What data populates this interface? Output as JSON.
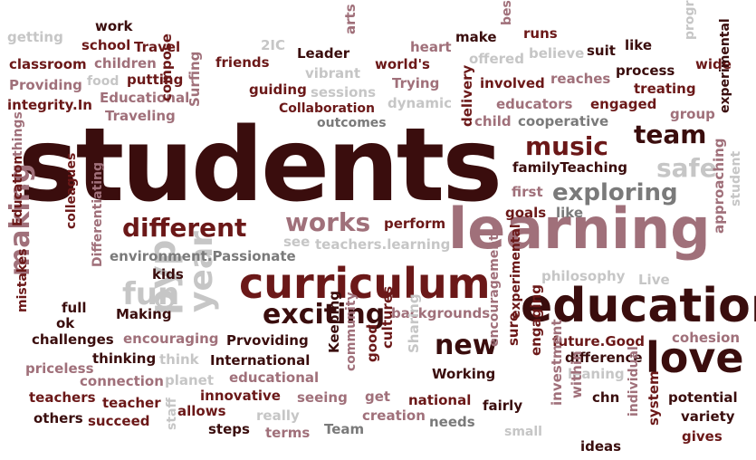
{
  "palette": {
    "dark": "#3a0d0d",
    "maroon": "#6b1818",
    "red": "#8e1f26",
    "rose": "#a0707a",
    "gray": "#7a7a7a",
    "lightgray": "#c6c6c6"
  },
  "words": [
    {
      "text": "students",
      "color": "dark"
    },
    {
      "text": "learning",
      "color": "rose"
    },
    {
      "text": "curriculum",
      "color": "maroon"
    },
    {
      "text": "education",
      "color": "dark"
    },
    {
      "text": "love",
      "color": "dark"
    },
    {
      "text": "exploring",
      "color": "gray"
    },
    {
      "text": "music",
      "color": "maroon"
    },
    {
      "text": "team",
      "color": "dark"
    },
    {
      "text": "safe",
      "color": "lightgray"
    },
    {
      "text": "different",
      "color": "maroon"
    },
    {
      "text": "works",
      "color": "rose"
    },
    {
      "text": "exciting",
      "color": "dark"
    },
    {
      "text": "new",
      "color": "dark"
    },
    {
      "text": "making",
      "color": "rose"
    },
    {
      "text": "fun",
      "color": "lightgray"
    },
    {
      "text": "pyp",
      "color": "lightgray"
    },
    {
      "text": "year",
      "color": "lightgray"
    },
    {
      "text": "work",
      "color": "dark"
    },
    {
      "text": "school",
      "color": "maroon"
    },
    {
      "text": "Travel",
      "color": "maroon"
    },
    {
      "text": "getting",
      "color": "lightgray"
    },
    {
      "text": "children",
      "color": "rose"
    },
    {
      "text": "classroom",
      "color": "maroon"
    },
    {
      "text": "food",
      "color": "lightgray"
    },
    {
      "text": "putting",
      "color": "maroon"
    },
    {
      "text": "Providing",
      "color": "rose"
    },
    {
      "text": "Educational",
      "color": "rose"
    },
    {
      "text": "integrity.In",
      "color": "maroon"
    },
    {
      "text": "Traveling",
      "color": "rose"
    },
    {
      "text": "compose",
      "color": "maroon"
    },
    {
      "text": "Surfing",
      "color": "rose"
    },
    {
      "text": "friends",
      "color": "maroon"
    },
    {
      "text": "guiding",
      "color": "maroon"
    },
    {
      "text": "2IC",
      "color": "lightgray"
    },
    {
      "text": "Leader",
      "color": "dark"
    },
    {
      "text": "arts",
      "color": "rose"
    },
    {
      "text": "vibrant",
      "color": "lightgray"
    },
    {
      "text": "sessions",
      "color": "lightgray"
    },
    {
      "text": "Collaboration",
      "color": "maroon"
    },
    {
      "text": "outcomes",
      "color": "gray"
    },
    {
      "text": "heart",
      "color": "rose"
    },
    {
      "text": "world's",
      "color": "maroon"
    },
    {
      "text": "Trying",
      "color": "rose"
    },
    {
      "text": "dynamic",
      "color": "lightgray"
    },
    {
      "text": "make",
      "color": "dark"
    },
    {
      "text": "best",
      "color": "rose"
    },
    {
      "text": "runs",
      "color": "maroon"
    },
    {
      "text": "offered",
      "color": "lightgray"
    },
    {
      "text": "believe",
      "color": "lightgray"
    },
    {
      "text": "suit",
      "color": "dark"
    },
    {
      "text": "like",
      "color": "dark"
    },
    {
      "text": "program",
      "color": "lightgray"
    },
    {
      "text": "wide",
      "color": "maroon"
    },
    {
      "text": "process",
      "color": "dark"
    },
    {
      "text": "reaches",
      "color": "rose"
    },
    {
      "text": "involved",
      "color": "maroon"
    },
    {
      "text": "treating",
      "color": "maroon"
    },
    {
      "text": "delivery",
      "color": "maroon"
    },
    {
      "text": "educators",
      "color": "rose"
    },
    {
      "text": "engaged",
      "color": "maroon"
    },
    {
      "text": "child",
      "color": "rose"
    },
    {
      "text": "cooperative",
      "color": "gray"
    },
    {
      "text": "group",
      "color": "rose"
    },
    {
      "text": "experimental",
      "color": "dark"
    },
    {
      "text": "familyTeaching",
      "color": "dark"
    },
    {
      "text": "first",
      "color": "rose"
    },
    {
      "text": "goals",
      "color": "maroon"
    },
    {
      "text": "like",
      "color": "gray"
    },
    {
      "text": "approaching",
      "color": "rose"
    },
    {
      "text": "student",
      "color": "lightgray"
    },
    {
      "text": "things",
      "color": "rose"
    },
    {
      "text": "Education",
      "color": "maroon"
    },
    {
      "text": "colleagues",
      "color": "maroon"
    },
    {
      "text": "Differentiating",
      "color": "rose"
    },
    {
      "text": "mistakes",
      "color": "maroon"
    },
    {
      "text": "full",
      "color": "dark"
    },
    {
      "text": "ok",
      "color": "dark"
    },
    {
      "text": "perform",
      "color": "maroon"
    },
    {
      "text": "see",
      "color": "lightgray"
    },
    {
      "text": "teachers.learning",
      "color": "lightgray"
    },
    {
      "text": "environment.Passionate",
      "color": "gray"
    },
    {
      "text": "kids",
      "color": "dark"
    },
    {
      "text": "philosophy",
      "color": "lightgray"
    },
    {
      "text": "Live",
      "color": "lightgray"
    },
    {
      "text": "Making",
      "color": "dark"
    },
    {
      "text": "backgrounds",
      "color": "rose"
    },
    {
      "text": "experimental",
      "color": "maroon"
    },
    {
      "text": "challenges",
      "color": "dark"
    },
    {
      "text": "encouraging",
      "color": "rose"
    },
    {
      "text": "Prvoviding",
      "color": "dark"
    },
    {
      "text": "Keeping",
      "color": "dark"
    },
    {
      "text": "community",
      "color": "rose"
    },
    {
      "text": "cultures",
      "color": "maroon"
    },
    {
      "text": "Sharing",
      "color": "lightgray"
    },
    {
      "text": "encouragement",
      "color": "rose"
    },
    {
      "text": "sure",
      "color": "maroon"
    },
    {
      "text": "engaging",
      "color": "maroon"
    },
    {
      "text": "future.Good",
      "color": "maroon"
    },
    {
      "text": "cohesion",
      "color": "rose"
    },
    {
      "text": "priceless",
      "color": "rose"
    },
    {
      "text": "thinking",
      "color": "dark"
    },
    {
      "text": "think",
      "color": "lightgray"
    },
    {
      "text": "International",
      "color": "dark"
    },
    {
      "text": "good",
      "color": "maroon"
    },
    {
      "text": "Working",
      "color": "dark"
    },
    {
      "text": "difference",
      "color": "dark"
    },
    {
      "text": "leaning",
      "color": "lightgray"
    },
    {
      "text": "connection",
      "color": "rose"
    },
    {
      "text": "planet",
      "color": "lightgray"
    },
    {
      "text": "educational",
      "color": "rose"
    },
    {
      "text": "teachers",
      "color": "maroon"
    },
    {
      "text": "teacher",
      "color": "maroon"
    },
    {
      "text": "innovative",
      "color": "maroon"
    },
    {
      "text": "seeing",
      "color": "rose"
    },
    {
      "text": "get",
      "color": "rose"
    },
    {
      "text": "national",
      "color": "maroon"
    },
    {
      "text": "fairly",
      "color": "dark"
    },
    {
      "text": "investment",
      "color": "rose"
    },
    {
      "text": "within",
      "color": "rose"
    },
    {
      "text": "chn",
      "color": "dark"
    },
    {
      "text": "individual",
      "color": "rose"
    },
    {
      "text": "potential",
      "color": "dark"
    },
    {
      "text": "others",
      "color": "dark"
    },
    {
      "text": "succeed",
      "color": "maroon"
    },
    {
      "text": "staff",
      "color": "lightgray"
    },
    {
      "text": "allows",
      "color": "maroon"
    },
    {
      "text": "really",
      "color": "lightgray"
    },
    {
      "text": "creation",
      "color": "rose"
    },
    {
      "text": "needs",
      "color": "gray"
    },
    {
      "text": "system",
      "color": "maroon"
    },
    {
      "text": "variety",
      "color": "dark"
    },
    {
      "text": "steps",
      "color": "dark"
    },
    {
      "text": "terms",
      "color": "rose"
    },
    {
      "text": "Team",
      "color": "gray"
    },
    {
      "text": "small",
      "color": "lightgray"
    },
    {
      "text": "ideas",
      "color": "dark"
    },
    {
      "text": "gives",
      "color": "maroon"
    }
  ]
}
